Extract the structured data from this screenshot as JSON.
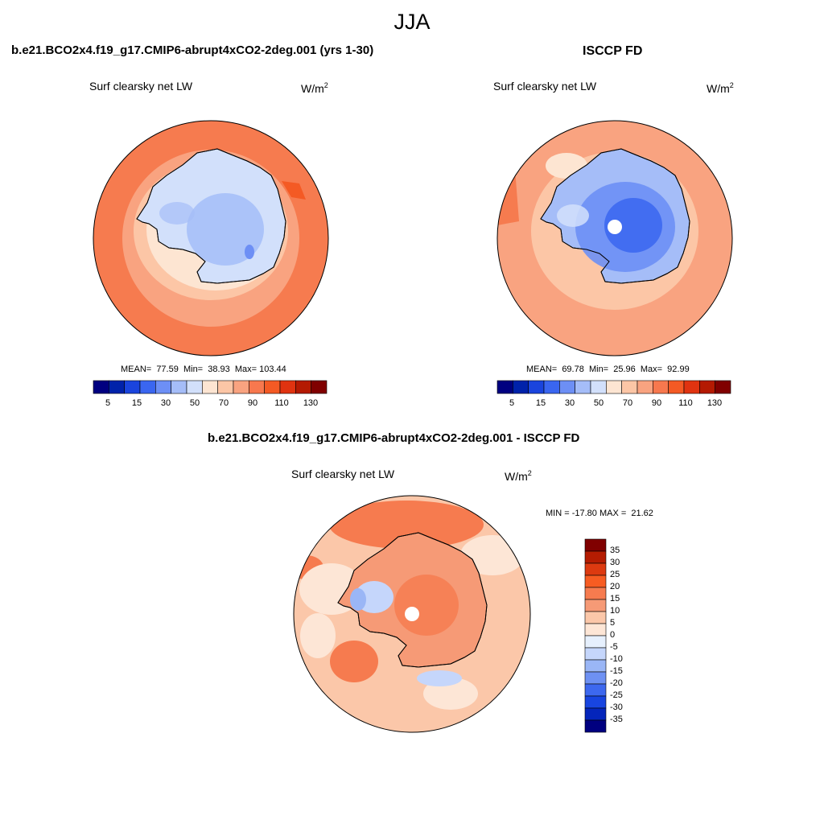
{
  "figure": {
    "title": "JJA",
    "variable": "Surf clearsky net LW",
    "units": "W/m",
    "units_exp": "2"
  },
  "panels": [
    {
      "id": "model",
      "title": "b.e21.BCO2x4.f19_g17.CMIP6-abrupt4xCO2-2deg.001 (yrs 1-30)",
      "stats": "MEAN=  77.59  Min=  38.93  Max= 103.44"
    },
    {
      "id": "obs",
      "title": "ISCCP FD",
      "stats": "MEAN=  69.78  Min=  25.96  Max=  92.99"
    },
    {
      "id": "diff",
      "title": "b.e21.BCO2x4.f19_g17.CMIP6-abrupt4xCO2-2deg.001 - ISCCP FD",
      "stats": "MIN = -17.80 MAX =  21.62"
    }
  ],
  "colorbar_abs": {
    "colors": [
      "#000080",
      "#0022aa",
      "#1a44dd",
      "#3a66f0",
      "#6d8ff5",
      "#a5bdf8",
      "#d2e0fb",
      "#fde5d2",
      "#fcc6a6",
      "#f9a380",
      "#f7784e",
      "#f45a24",
      "#e03310",
      "#b41a02",
      "#800000"
    ],
    "tick_labels": [
      "5",
      "15",
      "30",
      "50",
      "70",
      "90",
      "110",
      "130"
    ]
  },
  "colorbar_diff": {
    "colors": [
      "#800000",
      "#b51c02",
      "#dd3a10",
      "#f75c22",
      "#f67b4f",
      "#f69a76",
      "#fbc7a9",
      "#fde6d6",
      "#e6f0fd",
      "#c5d6fb",
      "#9ab6f6",
      "#6e91f3",
      "#3d68ef",
      "#1845e0",
      "#0425bb",
      "#000080"
    ],
    "tick_labels": [
      "35",
      "30",
      "25",
      "20",
      "15",
      "10",
      "5",
      "0",
      "-5",
      "-10",
      "-15",
      "-20",
      "-25",
      "-30",
      "-35"
    ]
  },
  "chart_data": [
    {
      "type": "heatmap",
      "title": "b.e21.BCO2x4.f19_g17.CMIP6-abrupt4xCO2-2deg.001 (yrs 1-30)",
      "variable": "Surf clearsky net LW",
      "season": "JJA",
      "projection": "south-polar-stereographic",
      "mean": 77.59,
      "min": 38.93,
      "max": 103.44,
      "levels": [
        5,
        15,
        30,
        50,
        70,
        90,
        110,
        130
      ]
    },
    {
      "type": "heatmap",
      "title": "ISCCP FD",
      "variable": "Surf clearsky net LW",
      "season": "JJA",
      "projection": "south-polar-stereographic",
      "mean": 69.78,
      "min": 25.96,
      "max": 92.99,
      "levels": [
        5,
        15,
        30,
        50,
        70,
        90,
        110,
        130
      ]
    },
    {
      "type": "heatmap",
      "title": "b.e21.BCO2x4.f19_g17.CMIP6-abrupt4xCO2-2deg.001 - ISCCP FD",
      "variable": "Surf clearsky net LW",
      "season": "JJA",
      "projection": "south-polar-stereographic",
      "min": -17.8,
      "max": 21.62,
      "levels": [
        -35,
        -30,
        -25,
        -20,
        -15,
        -10,
        -5,
        0,
        5,
        10,
        15,
        20,
        25,
        30,
        35
      ]
    }
  ]
}
